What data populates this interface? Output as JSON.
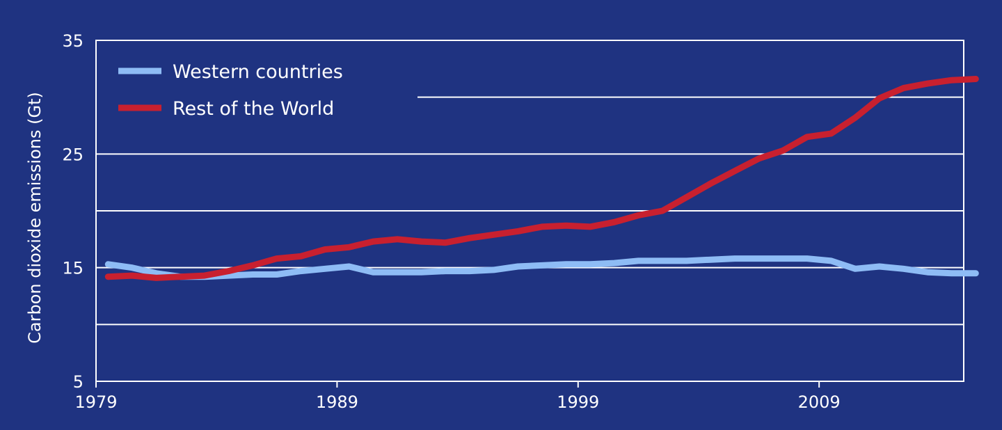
{
  "colors": {
    "background": "#1f3381",
    "gridline": "#ffffff",
    "western": "#8ebcf5",
    "rest": "#c8202f",
    "text": "#ffffff"
  },
  "chart_data": {
    "type": "line",
    "title": "",
    "xlabel": "",
    "ylabel": "Carbon dioxide emissions (Gt)",
    "xlim": [
      1979,
      2015
    ],
    "ylim": [
      5,
      35
    ],
    "xticks": [
      1979,
      1989,
      1999,
      2009
    ],
    "xtick_labels": [
      "1979",
      "1989",
      "1999",
      "2009"
    ],
    "yticks": [
      5,
      15,
      25,
      35
    ],
    "ytick_labels": [
      "5",
      "15",
      "25",
      "35"
    ],
    "gridlines_y": [
      10,
      15,
      20,
      25,
      30
    ],
    "grid": true,
    "legend_position": "top-left",
    "x": [
      1979,
      1980,
      1981,
      1982,
      1983,
      1984,
      1985,
      1986,
      1987,
      1988,
      1989,
      1990,
      1991,
      1992,
      1993,
      1994,
      1995,
      1996,
      1997,
      1998,
      1999,
      2000,
      2001,
      2002,
      2003,
      2004,
      2005,
      2006,
      2007,
      2008,
      2009,
      2010,
      2011,
      2012,
      2013,
      2014,
      2015
    ],
    "series": [
      {
        "name": "Western countries",
        "color": "#8ebcf5",
        "values": [
          15.3,
          15.0,
          14.5,
          14.2,
          14.2,
          14.3,
          14.4,
          14.4,
          14.7,
          14.9,
          15.1,
          14.6,
          14.6,
          14.6,
          14.7,
          14.7,
          14.8,
          15.1,
          15.2,
          15.3,
          15.3,
          15.4,
          15.6,
          15.6,
          15.6,
          15.7,
          15.8,
          15.8,
          15.8,
          15.8,
          15.6,
          14.9,
          15.1,
          14.9,
          14.6,
          14.5,
          14.5
        ]
      },
      {
        "name": "Rest of the World",
        "color": "#c8202f",
        "values": [
          14.2,
          14.3,
          14.1,
          14.2,
          14.3,
          14.7,
          15.2,
          15.8,
          16.0,
          16.6,
          16.8,
          17.3,
          17.5,
          17.3,
          17.2,
          17.6,
          17.9,
          18.2,
          18.6,
          18.7,
          18.6,
          19.0,
          19.6,
          20.0,
          21.2,
          22.4,
          23.5,
          24.6,
          25.3,
          26.5,
          26.8,
          28.2,
          29.9,
          30.8,
          31.2,
          31.5,
          31.6
        ]
      }
    ]
  }
}
